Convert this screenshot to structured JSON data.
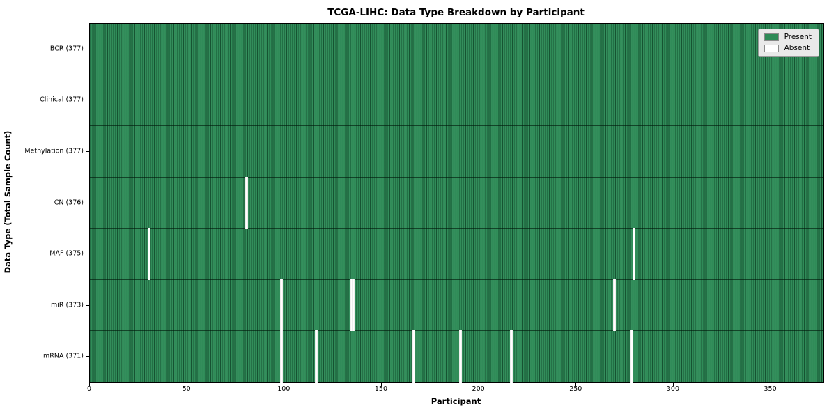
{
  "title": "TCGA-LIHC: Data Type Breakdown by Participant",
  "chart_data": {
    "type": "heatmap",
    "title": "TCGA-LIHC: Data Type Breakdown by Participant",
    "xlabel": "Participant",
    "ylabel": "Data Type (Total Sample Count)",
    "x_ticks": [
      0,
      50,
      100,
      150,
      200,
      250,
      300,
      350
    ],
    "xlim": [
      0,
      377
    ],
    "n_participants": 377,
    "grid": false,
    "legend": {
      "position": "upper right",
      "entries": [
        {
          "label": "Present",
          "color": "#2e8b57"
        },
        {
          "label": "Absent",
          "color": "#ffffff"
        }
      ]
    },
    "rows": [
      {
        "name": "BCR",
        "label": "BCR (377)",
        "total": 377,
        "absent_participants": []
      },
      {
        "name": "Clinical",
        "label": "Clinical (377)",
        "total": 377,
        "absent_participants": []
      },
      {
        "name": "Methylation",
        "label": "Methylation (377)",
        "total": 377,
        "absent_participants": []
      },
      {
        "name": "CN",
        "label": "CN (376)",
        "total": 376,
        "absent_participants": [
          80
        ]
      },
      {
        "name": "MAF",
        "label": "MAF (375)",
        "total": 375,
        "absent_participants": [
          30,
          279
        ]
      },
      {
        "name": "miR",
        "label": "miR (373)",
        "total": 373,
        "absent_participants": [
          98,
          134,
          135,
          269
        ]
      },
      {
        "name": "mRNA",
        "label": "mRNA (371)",
        "total": 371,
        "absent_participants": [
          98,
          116,
          166,
          190,
          216,
          278
        ]
      }
    ],
    "colors": {
      "present": "#2e8b57",
      "absent": "#ffffff",
      "cell_edge": "rgba(0,32,16,0.52)",
      "row_divider": "rgba(0,22,10,0.62)",
      "frame": "#000000",
      "legend_bg": "#e9e9e9"
    }
  }
}
